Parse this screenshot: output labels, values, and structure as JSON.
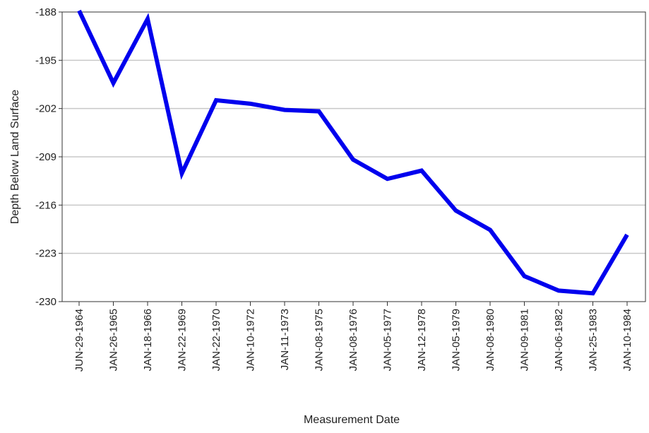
{
  "chart_data": {
    "type": "line",
    "title": "",
    "xlabel": "Measurement Date",
    "ylabel": "Depth Below Land Surface",
    "ylim": [
      -230,
      -188
    ],
    "yticks": [
      -188,
      -195,
      -202,
      -209,
      -216,
      -223,
      -230
    ],
    "grid": true,
    "legend": "none",
    "categories": [
      "JUN-29-1964",
      "JAN-26-1965",
      "JAN-18-1966",
      "JAN-22-1969",
      "JAN-22-1970",
      "JAN-10-1972",
      "JAN-11-1973",
      "JAN-08-1975",
      "JAN-08-1976",
      "JAN-05-1977",
      "JAN-12-1978",
      "JAN-05-1979",
      "JAN-08-1980",
      "JAN-09-1981",
      "JAN-06-1982",
      "JAN-25-1983",
      "JAN-10-1984"
    ],
    "series": [
      {
        "values": [
          -187.8,
          -198.3,
          -189.0,
          -211.4,
          -200.8,
          -201.3,
          -202.2,
          -202.4,
          -209.4,
          -212.2,
          -211.0,
          -216.8,
          -219.6,
          -226.3,
          -228.4,
          -228.8,
          -220.3
        ]
      }
    ],
    "colors": {
      "line": "#0000ee",
      "grid": "#c8c8c8",
      "axis": "#333333",
      "text": "#222222"
    }
  }
}
